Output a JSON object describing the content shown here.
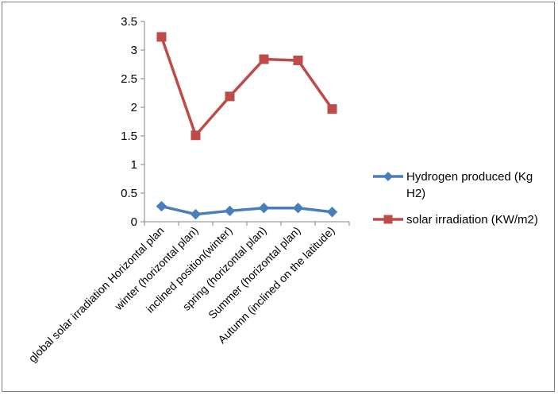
{
  "chart_data": {
    "type": "line",
    "categories": [
      "global solar irradiation Horizontal plan",
      "winter (horizontal plan)",
      "inclined position(winter)",
      "spring (horizontal plan)",
      "Summer (horizontal plan)",
      "Autumn (inclined on the latitude)"
    ],
    "series": [
      {
        "name": "Hydrogen produced (Kg H2)",
        "legend_lines": [
          "Hydrogen produced (Kg",
          "H2)"
        ],
        "color": "#4a7ebb",
        "marker": "diamond",
        "values": [
          0.27,
          0.13,
          0.19,
          0.24,
          0.24,
          0.17
        ]
      },
      {
        "name": "solar irradiation (KW/m2)",
        "legend_lines": [
          "solar irradiation (KW/m2)"
        ],
        "color": "#be4b48",
        "marker": "square",
        "values": [
          3.23,
          1.51,
          2.19,
          2.84,
          2.82,
          1.97
        ]
      }
    ],
    "ylim": [
      0,
      3.5
    ],
    "yticks": [
      "0",
      "0.5",
      "1",
      "1.5",
      "2",
      "2.5",
      "3",
      "3.5"
    ],
    "grid": false,
    "legend_position": "right"
  }
}
